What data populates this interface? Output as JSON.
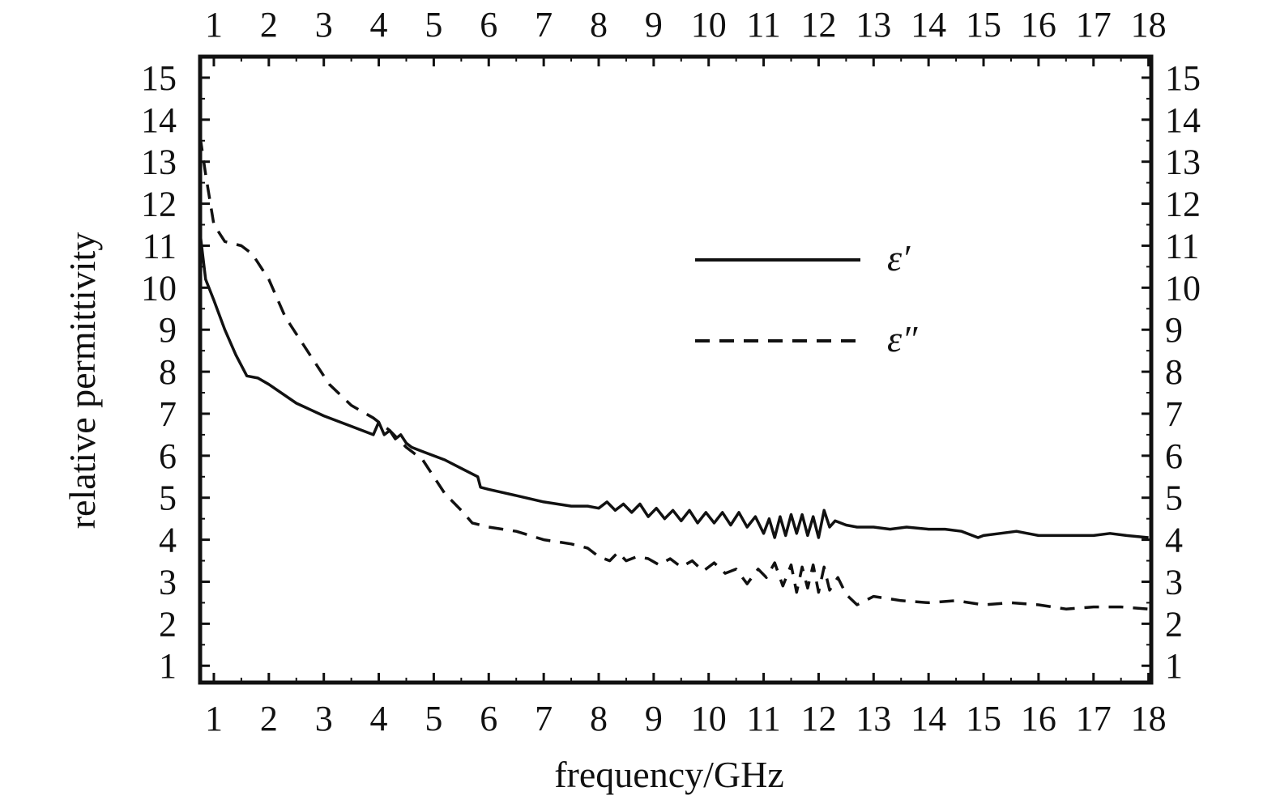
{
  "chart_data": {
    "type": "line",
    "xlabel": "frequency/GHz",
    "ylabel": "relative permittivity",
    "xlim": [
      0.75,
      18.05
    ],
    "ylim": [
      0.6,
      15.5
    ],
    "x_ticks": [
      1,
      2,
      3,
      4,
      5,
      6,
      7,
      8,
      9,
      10,
      11,
      12,
      13,
      14,
      15,
      16,
      17,
      18
    ],
    "y_ticks": [
      1,
      2,
      3,
      4,
      5,
      6,
      7,
      8,
      9,
      10,
      11,
      12,
      13,
      14,
      15
    ],
    "mirrored_axes": true,
    "grid": false,
    "legend_position": "upper-right",
    "series": [
      {
        "name": "ε′",
        "style": "solid",
        "color": "#111111",
        "x": [
          0.75,
          0.85,
          1.0,
          1.2,
          1.4,
          1.6,
          1.8,
          2.0,
          2.5,
          3.0,
          3.5,
          3.9,
          4.0,
          4.1,
          4.2,
          4.3,
          4.4,
          4.5,
          4.6,
          4.8,
          5.0,
          5.2,
          5.5,
          5.8,
          5.85,
          6.0,
          6.5,
          7.0,
          7.5,
          7.8,
          8.0,
          8.15,
          8.3,
          8.45,
          8.6,
          8.75,
          8.9,
          9.05,
          9.2,
          9.35,
          9.5,
          9.65,
          9.8,
          9.95,
          10.1,
          10.25,
          10.4,
          10.55,
          10.7,
          10.85,
          11.0,
          11.1,
          11.2,
          11.3,
          11.4,
          11.5,
          11.6,
          11.7,
          11.8,
          11.9,
          12.0,
          12.1,
          12.2,
          12.3,
          12.5,
          12.7,
          13.0,
          13.3,
          13.6,
          14.0,
          14.3,
          14.6,
          14.9,
          15.0,
          15.3,
          15.6,
          15.8,
          16.0,
          16.5,
          17.0,
          17.3,
          17.6,
          18.0
        ],
        "y": [
          11.3,
          10.2,
          9.7,
          9.0,
          8.4,
          7.9,
          7.85,
          7.7,
          7.25,
          6.95,
          6.7,
          6.5,
          6.8,
          6.5,
          6.6,
          6.4,
          6.5,
          6.3,
          6.2,
          6.1,
          6.0,
          5.9,
          5.7,
          5.5,
          5.25,
          5.2,
          5.05,
          4.9,
          4.8,
          4.8,
          4.75,
          4.9,
          4.7,
          4.85,
          4.65,
          4.85,
          4.55,
          4.75,
          4.5,
          4.7,
          4.45,
          4.7,
          4.4,
          4.65,
          4.4,
          4.65,
          4.35,
          4.65,
          4.3,
          4.55,
          4.15,
          4.5,
          4.05,
          4.55,
          4.1,
          4.6,
          4.15,
          4.6,
          4.1,
          4.55,
          4.05,
          4.7,
          4.3,
          4.45,
          4.35,
          4.3,
          4.3,
          4.25,
          4.3,
          4.25,
          4.25,
          4.2,
          4.05,
          4.1,
          4.15,
          4.2,
          4.15,
          4.1,
          4.1,
          4.1,
          4.15,
          4.1,
          4.05
        ]
      },
      {
        "name": "ε″",
        "style": "dashed",
        "color": "#111111",
        "x": [
          0.75,
          0.85,
          1.0,
          1.2,
          1.5,
          1.7,
          2.0,
          2.3,
          2.7,
          3.1,
          3.5,
          3.9,
          4.2,
          4.5,
          4.8,
          5.0,
          5.2,
          5.5,
          5.7,
          6.0,
          6.5,
          7.0,
          7.5,
          7.8,
          8.0,
          8.2,
          8.35,
          8.5,
          8.7,
          8.9,
          9.1,
          9.3,
          9.5,
          9.7,
          9.9,
          10.1,
          10.3,
          10.5,
          10.7,
          10.9,
          11.05,
          11.2,
          11.35,
          11.5,
          11.6,
          11.7,
          11.8,
          11.9,
          12.0,
          12.1,
          12.2,
          12.35,
          12.5,
          12.7,
          13.0,
          13.5,
          14.0,
          14.5,
          15.0,
          15.5,
          16.0,
          16.5,
          17.0,
          17.5,
          18.0
        ],
        "y": [
          13.6,
          12.7,
          11.5,
          11.1,
          11.0,
          10.8,
          10.2,
          9.3,
          8.5,
          7.7,
          7.2,
          6.9,
          6.6,
          6.2,
          5.9,
          5.5,
          5.1,
          4.7,
          4.4,
          4.3,
          4.2,
          4.0,
          3.9,
          3.8,
          3.6,
          3.5,
          3.7,
          3.5,
          3.6,
          3.55,
          3.4,
          3.55,
          3.35,
          3.5,
          3.25,
          3.45,
          3.2,
          3.3,
          2.95,
          3.3,
          3.1,
          3.45,
          2.9,
          3.4,
          2.75,
          3.35,
          2.85,
          3.4,
          2.75,
          3.35,
          2.8,
          3.1,
          2.7,
          2.45,
          2.65,
          2.55,
          2.5,
          2.55,
          2.45,
          2.5,
          2.45,
          2.35,
          2.4,
          2.4,
          2.35
        ]
      }
    ]
  }
}
